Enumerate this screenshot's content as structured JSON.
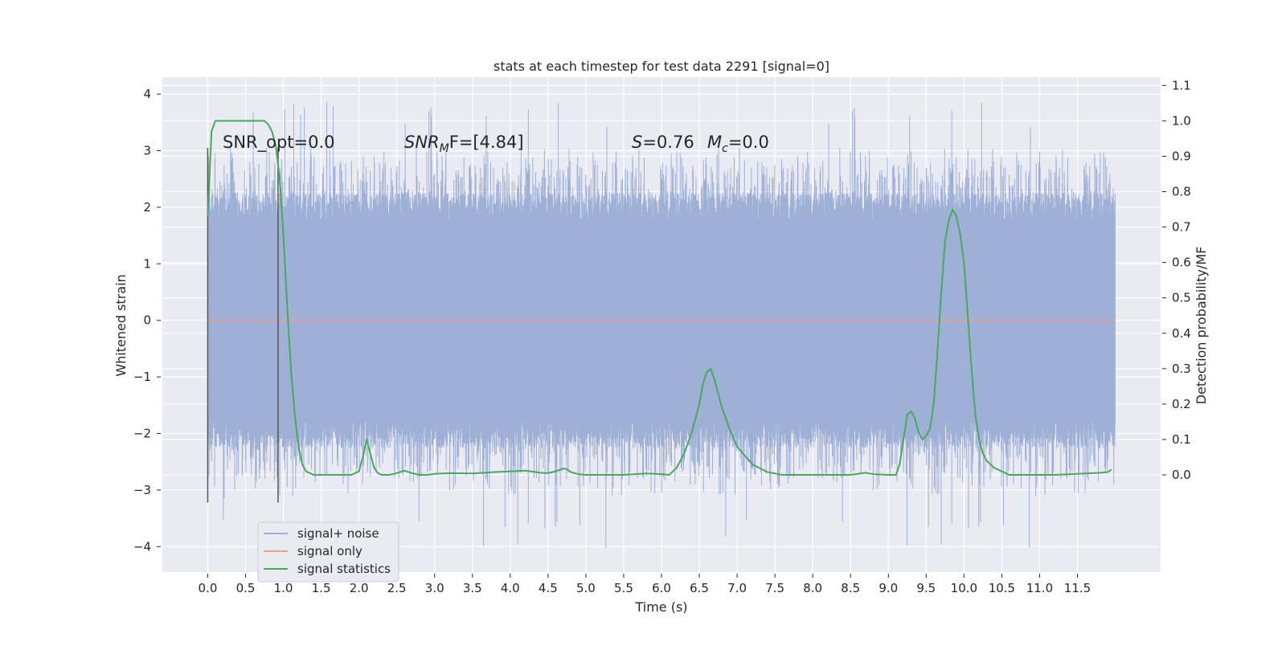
{
  "chart_data": {
    "type": "line",
    "title": "stats at each timestep for test data 2291 [signal=0]",
    "xlabel": "Time (s)",
    "ylabel": "Whitened strain",
    "y2label": "Detection probability/MF",
    "xlim": [
      -0.6,
      12.6
    ],
    "ylim": [
      -4.45,
      4.3
    ],
    "y2lim": [
      -0.2745,
      1.1235
    ],
    "xticks": [
      "0.0",
      "0.5",
      "1.0",
      "1.5",
      "2.0",
      "2.5",
      "3.0",
      "3.5",
      "4.0",
      "4.5",
      "5.0",
      "5.5",
      "6.0",
      "6.5",
      "7.0",
      "7.5",
      "8.0",
      "8.5",
      "9.0",
      "9.5",
      "10.0",
      "10.5",
      "11.0",
      "11.5"
    ],
    "yticks": [
      "4",
      "3",
      "2",
      "1",
      "0",
      "−1",
      "−2",
      "−3",
      "−4"
    ],
    "y2ticks": [
      "1.1",
      "1.0",
      "0.9",
      "0.8",
      "0.7",
      "0.6",
      "0.5",
      "0.4",
      "0.3",
      "0.2",
      "0.1",
      "0.0"
    ],
    "grid": true,
    "legend_position": "lower-left",
    "annotations": {
      "snr_opt": "SNR_opt=0.0",
      "snr_mf_main": "SNR",
      "snr_mf_sub": "M",
      "snr_mf_rest": "F=[4.84]",
      "s_var": "S",
      "s_rest": "=0.76",
      "mc_var": "M",
      "mc_sub": "c",
      "mc_rest": "=0.0"
    },
    "series": [
      {
        "name": "signal+ noise",
        "color": "#9eb0d5",
        "x_range": [
          0.0,
          12.0
        ],
        "band_y": [
          -1.8,
          1.8
        ],
        "peak_y": [
          -4.05,
          3.9
        ]
      },
      {
        "name": "signal only",
        "color": "#e8a188",
        "x": [
          0.0,
          12.0
        ],
        "y": [
          0.0,
          0.0
        ]
      },
      {
        "name": "signal statistics",
        "color": "#4aa85e",
        "x": [
          0.0,
          0.05,
          0.1,
          0.15,
          0.2,
          0.3,
          0.4,
          0.5,
          0.6,
          0.7,
          0.75,
          0.8,
          0.85,
          0.9,
          0.95,
          1.0,
          1.05,
          1.1,
          1.15,
          1.2,
          1.25,
          1.3,
          1.4,
          1.5,
          1.6,
          1.7,
          1.8,
          1.9,
          2.0,
          2.05,
          2.1,
          2.15,
          2.2,
          2.25,
          2.3,
          2.4,
          2.5,
          2.6,
          2.7,
          2.8,
          2.9,
          3.0,
          3.2,
          3.5,
          3.8,
          4.0,
          4.2,
          4.4,
          4.5,
          4.6,
          4.7,
          4.75,
          4.8,
          4.9,
          5.0,
          5.5,
          5.8,
          6.0,
          6.1,
          6.2,
          6.3,
          6.4,
          6.45,
          6.5,
          6.55,
          6.6,
          6.65,
          6.7,
          6.8,
          6.9,
          7.0,
          7.2,
          7.4,
          7.6,
          8.0,
          8.5,
          8.7,
          8.8,
          9.0,
          9.1,
          9.15,
          9.2,
          9.25,
          9.3,
          9.35,
          9.4,
          9.45,
          9.5,
          9.55,
          9.6,
          9.65,
          9.7,
          9.75,
          9.8,
          9.85,
          9.9,
          9.95,
          10.0,
          10.05,
          10.1,
          10.15,
          10.2,
          10.25,
          10.3,
          10.35,
          10.4,
          10.5,
          10.6,
          10.7,
          10.8,
          11.0,
          11.2,
          11.5,
          11.8,
          11.9,
          11.95
        ],
        "y": [
          0.73,
          0.97,
          1.0,
          1.0,
          1.0,
          1.0,
          1.0,
          1.0,
          1.0,
          1.0,
          1.0,
          0.99,
          0.97,
          0.93,
          0.84,
          0.68,
          0.48,
          0.3,
          0.17,
          0.08,
          0.03,
          0.01,
          0.0,
          0.0,
          0.0,
          0.0,
          0.0,
          0.0,
          0.01,
          0.05,
          0.1,
          0.06,
          0.02,
          0.005,
          0.0,
          0.0,
          0.005,
          0.012,
          0.005,
          0.0,
          0.0,
          0.003,
          0.005,
          0.004,
          0.008,
          0.01,
          0.012,
          0.006,
          0.005,
          0.01,
          0.018,
          0.016,
          0.008,
          0.002,
          0.0,
          0.0,
          0.004,
          0.002,
          0.0,
          0.02,
          0.06,
          0.12,
          0.16,
          0.2,
          0.26,
          0.29,
          0.3,
          0.27,
          0.19,
          0.13,
          0.08,
          0.03,
          0.008,
          0.0,
          0.0,
          0.0,
          0.006,
          0.002,
          0.0,
          0.0,
          0.03,
          0.1,
          0.17,
          0.18,
          0.16,
          0.12,
          0.1,
          0.11,
          0.13,
          0.2,
          0.35,
          0.52,
          0.66,
          0.72,
          0.75,
          0.73,
          0.68,
          0.6,
          0.45,
          0.3,
          0.17,
          0.1,
          0.06,
          0.04,
          0.03,
          0.02,
          0.01,
          0.0,
          0.0,
          0.0,
          0.0,
          0.0,
          0.003,
          0.006,
          0.008,
          0.015
        ]
      }
    ],
    "vertical_markers": [
      {
        "x": 0.0,
        "y_range": [
          -3.22,
          3.05
        ],
        "color": "#555555"
      },
      {
        "x": 0.93,
        "y_range": [
          -3.22,
          3.05
        ],
        "color": "#555555"
      }
    ]
  }
}
